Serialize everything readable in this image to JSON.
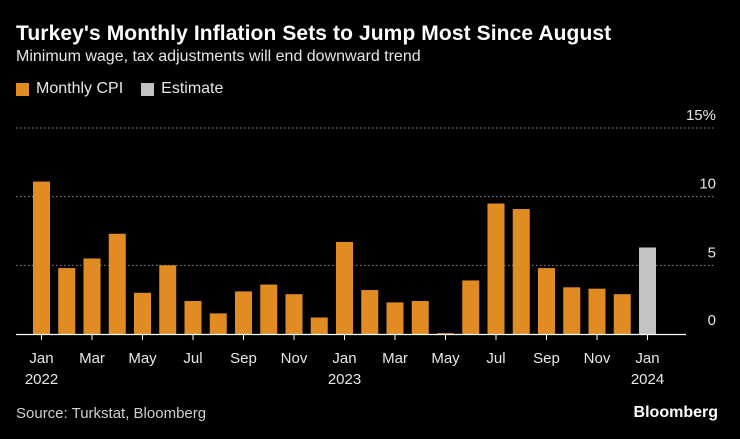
{
  "title": "Turkey's Monthly Inflation Sets to Jump Most Since August",
  "subtitle": "Minimum wage, tax adjustments will end downward trend",
  "legend": [
    {
      "label": "Monthly CPI",
      "color": "#e08c22"
    },
    {
      "label": "Estimate",
      "color": "#c2c2c2"
    }
  ],
  "source": "Source: Turkstat, Bloomberg",
  "brand": "Bloomberg",
  "colors": {
    "cpi": "#e08c22",
    "estimate": "#c2c2c2",
    "grid": "#8a8a8a",
    "axis": "#ffffff",
    "tick_label": "#e6e6e6"
  },
  "chart_data": {
    "type": "bar",
    "title": "Turkey's Monthly Inflation Sets to Jump Most Since August",
    "subtitle": "Minimum wage, tax adjustments will end downward trend",
    "xlabel": "",
    "ylabel": "",
    "ylim": [
      0,
      15
    ],
    "y_ticks": [
      0,
      5,
      10,
      15
    ],
    "y_tick_labels": [
      "0",
      "5",
      "10",
      "15%"
    ],
    "grid": true,
    "legend_position": "top-left",
    "categories": [
      "Jan 2022",
      "Feb 2022",
      "Mar 2022",
      "Apr 2022",
      "May 2022",
      "Jun 2022",
      "Jul 2022",
      "Aug 2022",
      "Sep 2022",
      "Oct 2022",
      "Nov 2022",
      "Dec 2022",
      "Jan 2023",
      "Feb 2023",
      "Mar 2023",
      "Apr 2023",
      "May 2023",
      "Jun 2023",
      "Jul 2023",
      "Aug 2023",
      "Sep 2023",
      "Oct 2023",
      "Nov 2023",
      "Dec 2023",
      "Jan 2024"
    ],
    "series": [
      {
        "name": "Monthly CPI",
        "values": [
          11.1,
          4.8,
          5.5,
          7.3,
          3.0,
          5.0,
          2.4,
          1.5,
          3.1,
          3.6,
          2.9,
          1.2,
          6.7,
          3.2,
          2.3,
          2.4,
          0.04,
          3.9,
          9.5,
          9.1,
          4.8,
          3.4,
          3.3,
          2.9,
          null
        ]
      },
      {
        "name": "Estimate",
        "values": [
          null,
          null,
          null,
          null,
          null,
          null,
          null,
          null,
          null,
          null,
          null,
          null,
          null,
          null,
          null,
          null,
          null,
          null,
          null,
          null,
          null,
          null,
          null,
          null,
          6.3
        ]
      }
    ],
    "x_tick_labels": [
      {
        "index": 0,
        "month": "Jan",
        "year": "2022"
      },
      {
        "index": 2,
        "month": "Mar",
        "year": ""
      },
      {
        "index": 4,
        "month": "May",
        "year": ""
      },
      {
        "index": 6,
        "month": "Jul",
        "year": ""
      },
      {
        "index": 8,
        "month": "Sep",
        "year": ""
      },
      {
        "index": 10,
        "month": "Nov",
        "year": ""
      },
      {
        "index": 12,
        "month": "Jan",
        "year": "2023"
      },
      {
        "index": 14,
        "month": "Mar",
        "year": ""
      },
      {
        "index": 16,
        "month": "May",
        "year": ""
      },
      {
        "index": 18,
        "month": "Jul",
        "year": ""
      },
      {
        "index": 20,
        "month": "Sep",
        "year": ""
      },
      {
        "index": 22,
        "month": "Nov",
        "year": ""
      },
      {
        "index": 24,
        "month": "Jan",
        "year": "2024"
      }
    ]
  }
}
